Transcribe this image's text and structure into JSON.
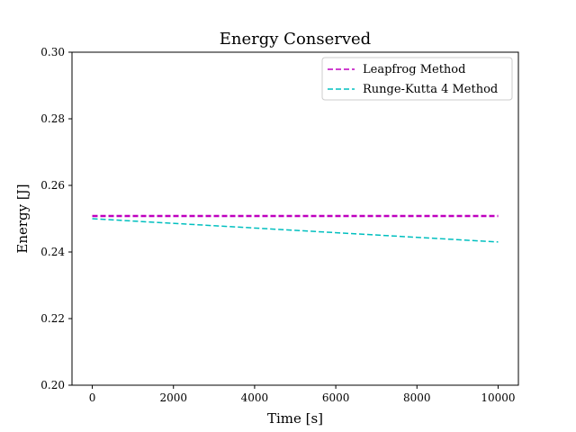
{
  "chart_data": {
    "type": "line",
    "title": "Energy Conserved",
    "xlabel": "Time [s]",
    "ylabel": "Energy [J]",
    "xlim": [
      -500,
      10500
    ],
    "ylim": [
      0.2,
      0.3
    ],
    "xticks": [
      0,
      2000,
      4000,
      6000,
      8000,
      10000
    ],
    "yticks": [
      0.2,
      0.22,
      0.24,
      0.26,
      0.28,
      0.3
    ],
    "grid": false,
    "legend_position": "top-right",
    "series": [
      {
        "name": "Leapfrog Method",
        "color": "#bf00bf",
        "style": "dashed",
        "x": [
          0,
          10000
        ],
        "y": [
          0.2508,
          0.2508
        ]
      },
      {
        "name": "Runge-Kutta 4 Method",
        "color": "#00bfbf",
        "style": "dashed",
        "x": [
          0,
          10000
        ],
        "y": [
          0.25,
          0.243
        ]
      }
    ]
  }
}
